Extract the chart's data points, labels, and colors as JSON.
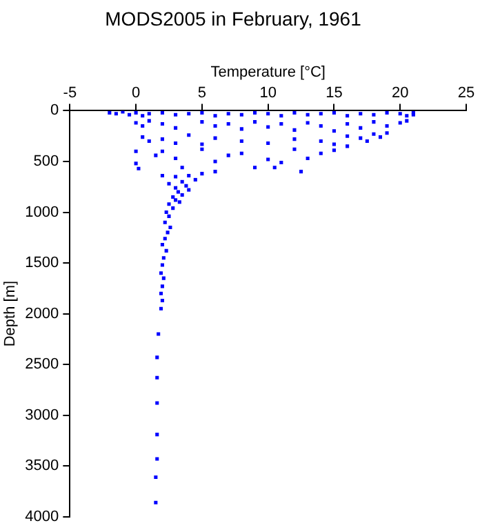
{
  "chart_data": {
    "type": "scatter",
    "title": "MODS2005 in February, 1961",
    "xlabel": "Temperature [°C]",
    "ylabel": "Depth [m]",
    "xlim": [
      -5,
      25
    ],
    "xticks": [
      -5,
      0,
      5,
      10,
      15,
      20,
      25
    ],
    "ylim": [
      4000,
      0
    ],
    "yticks": [
      0,
      500,
      1000,
      1500,
      2000,
      2500,
      3000,
      3500,
      4000
    ],
    "grid": false,
    "legend": false,
    "marker": "square",
    "series": [
      {
        "color": "#0000ff",
        "x": [
          -2,
          -1.5,
          -1,
          -0.5,
          0,
          0.5,
          1,
          2,
          3,
          4,
          5,
          6,
          7,
          8,
          9,
          10,
          11,
          12,
          13,
          14,
          15,
          16,
          17,
          18,
          19,
          20,
          20.5,
          21,
          21,
          0,
          0.5,
          1,
          2,
          3,
          5,
          6,
          7,
          8,
          9,
          10,
          11,
          12,
          13,
          14,
          15,
          16,
          17,
          18,
          19,
          20,
          20.5,
          0.5,
          1,
          2,
          3,
          4,
          5,
          6,
          8,
          10,
          12,
          14,
          15,
          16,
          17,
          18,
          18.5,
          19,
          17.5,
          0,
          0,
          0.2,
          1.5,
          2,
          3,
          3.5,
          5,
          6,
          7,
          8,
          9,
          10,
          11,
          12,
          13,
          14,
          15,
          16,
          12.5,
          10.5,
          2,
          3,
          3.5,
          4,
          4.5,
          5,
          6,
          2.5,
          3,
          3.2,
          3.8,
          4,
          2.8,
          3,
          3.5,
          2.5,
          2.8,
          3.3,
          2.3,
          2.5,
          2.2,
          2.6,
          2.4,
          2.2,
          2,
          2.3,
          2.1,
          2,
          1.9,
          2.1,
          2,
          1.9,
          2,
          1.9,
          1.7,
          1.6,
          1.6,
          1.6,
          1.6,
          1.6,
          1.5,
          1.5
        ],
        "values": [
          20,
          30,
          10,
          40,
          20,
          50,
          30,
          20,
          40,
          30,
          20,
          50,
          30,
          40,
          20,
          30,
          50,
          20,
          40,
          30,
          20,
          50,
          30,
          40,
          20,
          30,
          50,
          20,
          40,
          120,
          150,
          100,
          130,
          170,
          110,
          150,
          130,
          180,
          110,
          160,
          130,
          190,
          120,
          150,
          200,
          130,
          170,
          110,
          150,
          120,
          100,
          260,
          300,
          280,
          320,
          240,
          330,
          270,
          300,
          320,
          280,
          300,
          330,
          250,
          270,
          230,
          260,
          220,
          300,
          400,
          520,
          570,
          440,
          400,
          470,
          560,
          380,
          500,
          440,
          420,
          560,
          480,
          510,
          380,
          470,
          420,
          390,
          350,
          600,
          560,
          640,
          650,
          700,
          640,
          680,
          620,
          600,
          720,
          760,
          800,
          740,
          780,
          850,
          880,
          830,
          920,
          960,
          900,
          1000,
          1040,
          1100,
          1150,
          1200,
          1260,
          1320,
          1380,
          1450,
          1520,
          1600,
          1650,
          1730,
          1800,
          1870,
          1950,
          2200,
          2430,
          2630,
          2880,
          3190,
          3430,
          3610,
          3860
        ]
      }
    ]
  }
}
